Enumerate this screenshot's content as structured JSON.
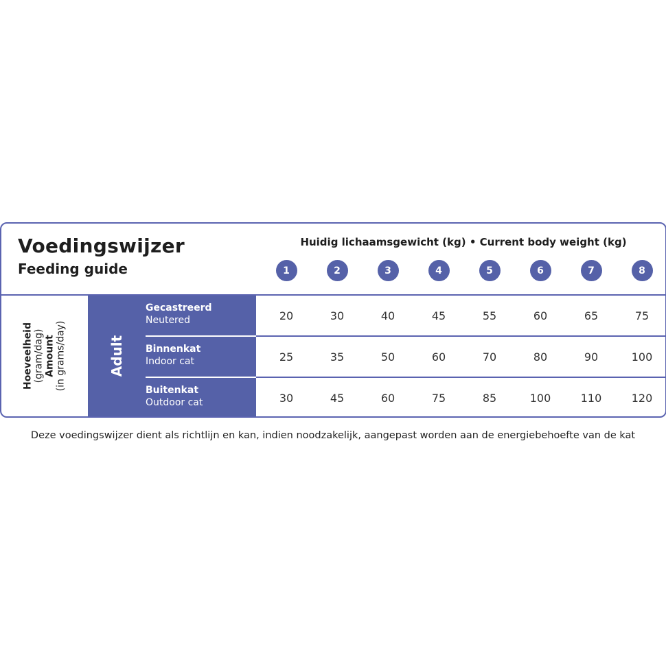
{
  "title": "Voedingswijzer",
  "subtitle": "Feeding guide",
  "weight_header": "Huidig lichaamsgewicht (kg)  •  Current body weight (kg)",
  "weights": [
    "1",
    "2",
    "3",
    "4",
    "5",
    "6",
    "7",
    "8"
  ],
  "amount_label": {
    "nl_bold": "Hoeveelheid",
    "nl_unit": "(gram/dag)",
    "en_bold": "Amount",
    "en_unit": "(in grams/day)"
  },
  "group_label": "Adult",
  "rows": [
    {
      "nl": "Gecastreerd",
      "en": "Neutered",
      "values": [
        "20",
        "30",
        "40",
        "45",
        "55",
        "60",
        "65",
        "75"
      ]
    },
    {
      "nl": "Binnenkat",
      "en": "Indoor cat",
      "values": [
        "25",
        "35",
        "50",
        "60",
        "70",
        "80",
        "90",
        "100"
      ]
    },
    {
      "nl": "Buitenkat",
      "en": "Outdoor cat",
      "values": [
        "30",
        "45",
        "60",
        "75",
        "85",
        "100",
        "110",
        "120"
      ]
    }
  ],
  "footer": "Deze voedingswijzer dient als richtlijn en kan, indien noodzakelijk, aangepast worden aan de energiebehoefte van de kat",
  "colors": {
    "accent": "#5561a8",
    "border": "#5a63b0"
  }
}
